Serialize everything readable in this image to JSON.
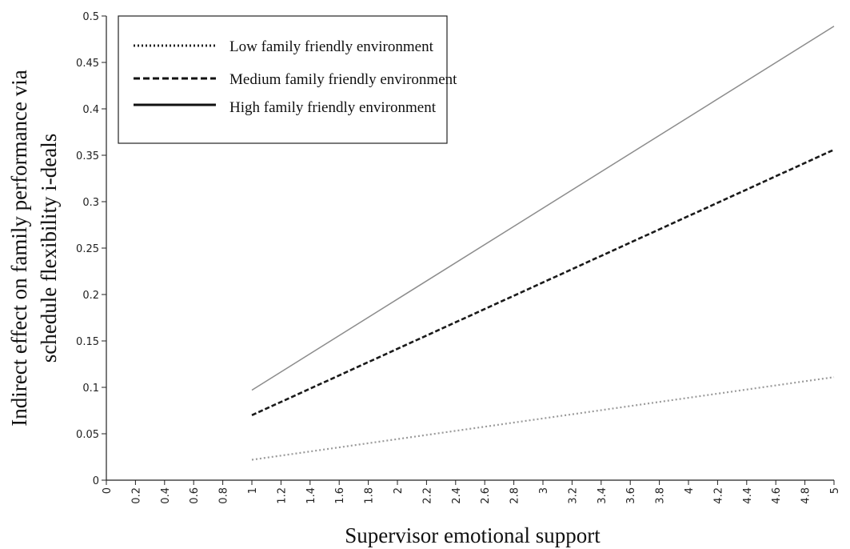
{
  "chart_data": {
    "type": "line",
    "xlabel": "Supervisor emotional support",
    "ylabel_lines": [
      "Indirect effect on family performance via",
      "schedule flexibility i-deals"
    ],
    "xlim": [
      0,
      5
    ],
    "ylim": [
      0,
      0.5
    ],
    "x_ticks": [
      "0",
      "0.2",
      "0.4",
      "0.6",
      "0.8",
      "1",
      "1.2",
      "1.4",
      "1.6",
      "1.8",
      "2",
      "2.2",
      "2.4",
      "2.6",
      "2.8",
      "3",
      "3.2",
      "3.4",
      "3.6",
      "3.8",
      "4",
      "4.2",
      "4.4",
      "4.6",
      "4.8",
      "5"
    ],
    "y_ticks": [
      "0",
      "0.05",
      "0.1",
      "0.15",
      "0.2",
      "0.25",
      "0.3",
      "0.35",
      "0.4",
      "0.45",
      "0.5"
    ],
    "grid": false,
    "legend_position": "top-left",
    "series": [
      {
        "name": "Low family friendly environment",
        "style": "dotted",
        "color": "#9a9a9a",
        "x": [
          1,
          5
        ],
        "y": [
          0.022,
          0.111
        ]
      },
      {
        "name": "Medium family friendly environment",
        "style": "dashed",
        "color": "#1a1a1a",
        "x": [
          1,
          5
        ],
        "y": [
          0.07,
          0.356
        ]
      },
      {
        "name": "High family friendly environment",
        "style": "solid",
        "color": "#8c8c8c",
        "x": [
          1,
          5
        ],
        "y": [
          0.097,
          0.489
        ]
      }
    ]
  }
}
